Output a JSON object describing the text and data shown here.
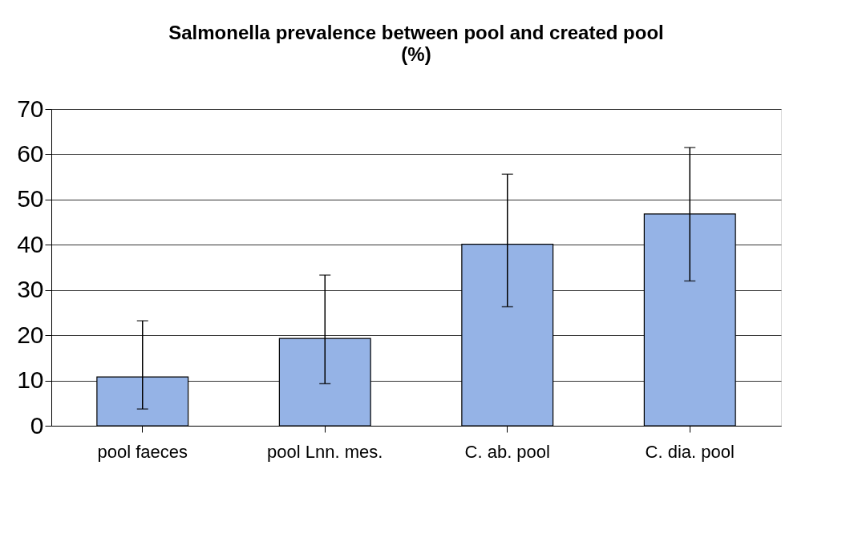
{
  "chart_data": {
    "type": "bar",
    "title": "Salmonella prevalence between pool and created pool",
    "subtitle": "(%)",
    "categories": [
      "pool faeces",
      "pool Lnn. mes.",
      "C. ab. pool",
      "C. dia. pool"
    ],
    "values": [
      10.8,
      19.3,
      40.1,
      46.8
    ],
    "errors": [
      [
        3.7,
        23.2
      ],
      [
        9.3,
        33.3
      ],
      [
        26.3,
        55.6
      ],
      [
        32.0,
        61.5
      ]
    ],
    "color": "#95b3e6",
    "ylim": [
      0,
      70
    ],
    "yticks": [
      0,
      10,
      20,
      30,
      40,
      50,
      60,
      70
    ],
    "grid": "y"
  }
}
